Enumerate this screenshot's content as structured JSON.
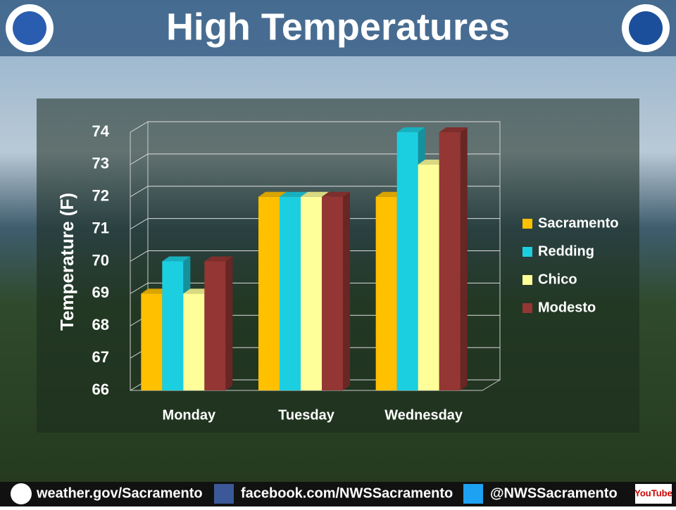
{
  "chart_data": {
    "type": "bar3d",
    "title": "High Temperatures",
    "y_label": "Temperature (F)",
    "categories": [
      "Monday",
      "Tuesday",
      "Wednesday"
    ],
    "series": [
      {
        "name": "Sacramento",
        "color": "#ffc000",
        "values": [
          69,
          72,
          72
        ]
      },
      {
        "name": "Redding",
        "color": "#1ccfe0",
        "values": [
          70,
          72,
          74
        ]
      },
      {
        "name": "Chico",
        "color": "#ffff99",
        "values": [
          69,
          72,
          73
        ]
      },
      {
        "name": "Modesto",
        "color": "#943634",
        "values": [
          70,
          72,
          74
        ]
      }
    ],
    "ylim": [
      66,
      74
    ],
    "yticks": [
      66,
      67,
      68,
      69,
      70,
      71,
      72,
      73,
      74
    ],
    "grid": true,
    "legend": "right"
  },
  "footer": {
    "website": "weather.gov/Sacramento",
    "facebook": "facebook.com/NWSSacramento",
    "twitter": "@NWSSacramento",
    "youtube": "YouTube"
  }
}
